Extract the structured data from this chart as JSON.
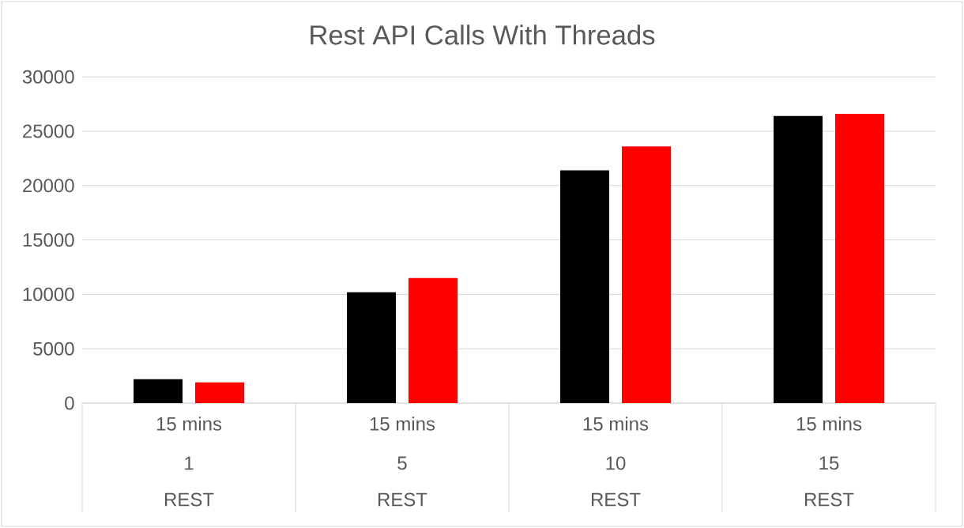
{
  "chart_data": {
    "type": "bar",
    "title": "Rest API Calls With Threads",
    "categories": [
      "1",
      "5",
      "10",
      "15"
    ],
    "series": [
      {
        "color": "#000000",
        "values": [
          2200,
          10200,
          21400,
          26400
        ]
      },
      {
        "color": "#ff0000",
        "values": [
          1900,
          11500,
          23600,
          26600
        ]
      }
    ],
    "annotations": [
      "15 mins",
      "15 mins",
      "15 mins",
      "15 mins",
      "REST",
      "REST",
      "REST",
      "REST"
    ],
    "ylim": [
      0,
      30000
    ],
    "yticks": [
      0,
      5000,
      10000,
      15000,
      20000,
      25000,
      30000
    ],
    "grid": "y"
  }
}
